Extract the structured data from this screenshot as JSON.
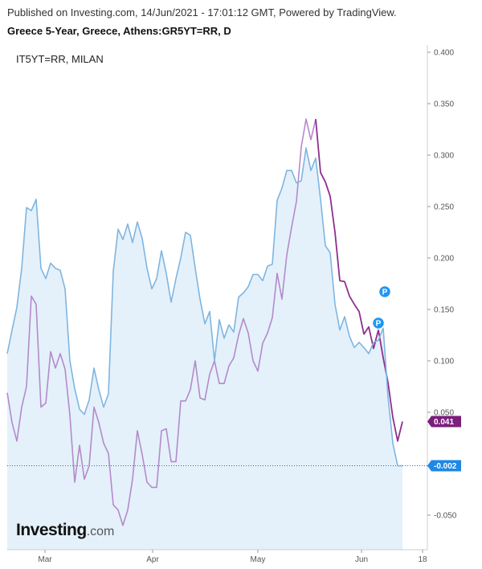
{
  "header": {
    "published": "Published on Investing.com, 14/Jun/2021 - 17:01:12 GMT, Powered by TradingView.",
    "title": "Greece 5-Year, Greece, Athens:GR5YT=RR, D"
  },
  "legend": {
    "overlay_label": "IT5YT=RR, MILAN"
  },
  "logo": {
    "brand": "Investing",
    "suffix": ".com"
  },
  "markers": {
    "p1": "P",
    "p2": "P"
  },
  "chart_data": {
    "type": "line",
    "title": "Greece 5-Year, Greece, Athens:GR5YT=RR, D",
    "ylim": [
      -0.085,
      0.41
    ],
    "y_ticks": [
      0.4,
      0.35,
      0.3,
      0.25,
      0.2,
      0.15,
      0.1,
      0.05,
      -0.05
    ],
    "y_tick_labels": [
      "0.400",
      "0.350",
      "0.300",
      "0.250",
      "0.200",
      "0.150",
      "0.100",
      "0.050",
      "-0.050"
    ],
    "x_tick_labels": [
      "Mar",
      "Apr",
      "May",
      "Jun",
      "18"
    ],
    "grid": false,
    "series": [
      {
        "name": "GR5YT=RR",
        "color": "#7fb5e0",
        "last_value_label": "-0.002",
        "values": [
          0.107,
          0.13,
          0.152,
          0.19,
          0.249,
          0.246,
          0.257,
          0.19,
          0.18,
          0.195,
          0.19,
          0.188,
          0.17,
          0.1,
          0.073,
          0.053,
          0.048,
          0.062,
          0.093,
          0.072,
          0.055,
          0.068,
          0.187,
          0.228,
          0.218,
          0.233,
          0.215,
          0.235,
          0.219,
          0.19,
          0.17,
          0.18,
          0.207,
          0.185,
          0.157,
          0.18,
          0.2,
          0.225,
          0.222,
          0.19,
          0.16,
          0.136,
          0.148,
          0.1,
          0.14,
          0.122,
          0.135,
          0.128,
          0.162,
          0.166,
          0.172,
          0.184,
          0.184,
          0.178,
          0.192,
          0.194,
          0.256,
          0.268,
          0.285,
          0.285,
          0.273,
          0.275,
          0.307,
          0.285,
          0.297,
          0.257,
          0.212,
          0.205,
          0.155,
          0.13,
          0.143,
          0.124,
          0.113,
          0.118,
          0.113,
          0.107,
          0.118,
          0.12,
          0.132,
          0.065,
          0.02,
          -0.002,
          -0.002
        ]
      },
      {
        "name": "IT5YT=RR",
        "color": "#8e2f8f",
        "last_value_label": "0.041",
        "values": [
          0.069,
          0.04,
          0.022,
          0.055,
          0.075,
          0.163,
          0.155,
          0.055,
          0.059,
          0.109,
          0.093,
          0.107,
          0.092,
          0.047,
          -0.018,
          0.018,
          -0.015,
          -0.002,
          0.055,
          0.04,
          0.02,
          0.01,
          -0.04,
          -0.045,
          -0.06,
          -0.045,
          -0.015,
          0.032,
          0.009,
          -0.018,
          -0.023,
          -0.023,
          0.032,
          0.034,
          0.002,
          0.002,
          0.061,
          0.061,
          0.072,
          0.1,
          0.064,
          0.062,
          0.087,
          0.1,
          0.078,
          0.078,
          0.095,
          0.103,
          0.125,
          0.141,
          0.127,
          0.1,
          0.09,
          0.117,
          0.127,
          0.142,
          0.185,
          0.16,
          0.203,
          0.23,
          0.255,
          0.308,
          0.335,
          0.315,
          0.335,
          0.283,
          0.274,
          0.26,
          0.225,
          0.178,
          0.177,
          0.163,
          0.155,
          0.148,
          0.126,
          0.133,
          0.112,
          0.13,
          0.103,
          0.079,
          0.045,
          0.022,
          0.041
        ]
      }
    ]
  },
  "colors": {
    "area_fill": "#e4f1fb",
    "gr_line": "#7fb5e0",
    "it_line": "#8e2f8f",
    "it_line_light": "#b48ac9",
    "badge_blue": "#2196f3",
    "gr_tag": "#1e88e5",
    "it_tag": "#7b1f7b"
  }
}
